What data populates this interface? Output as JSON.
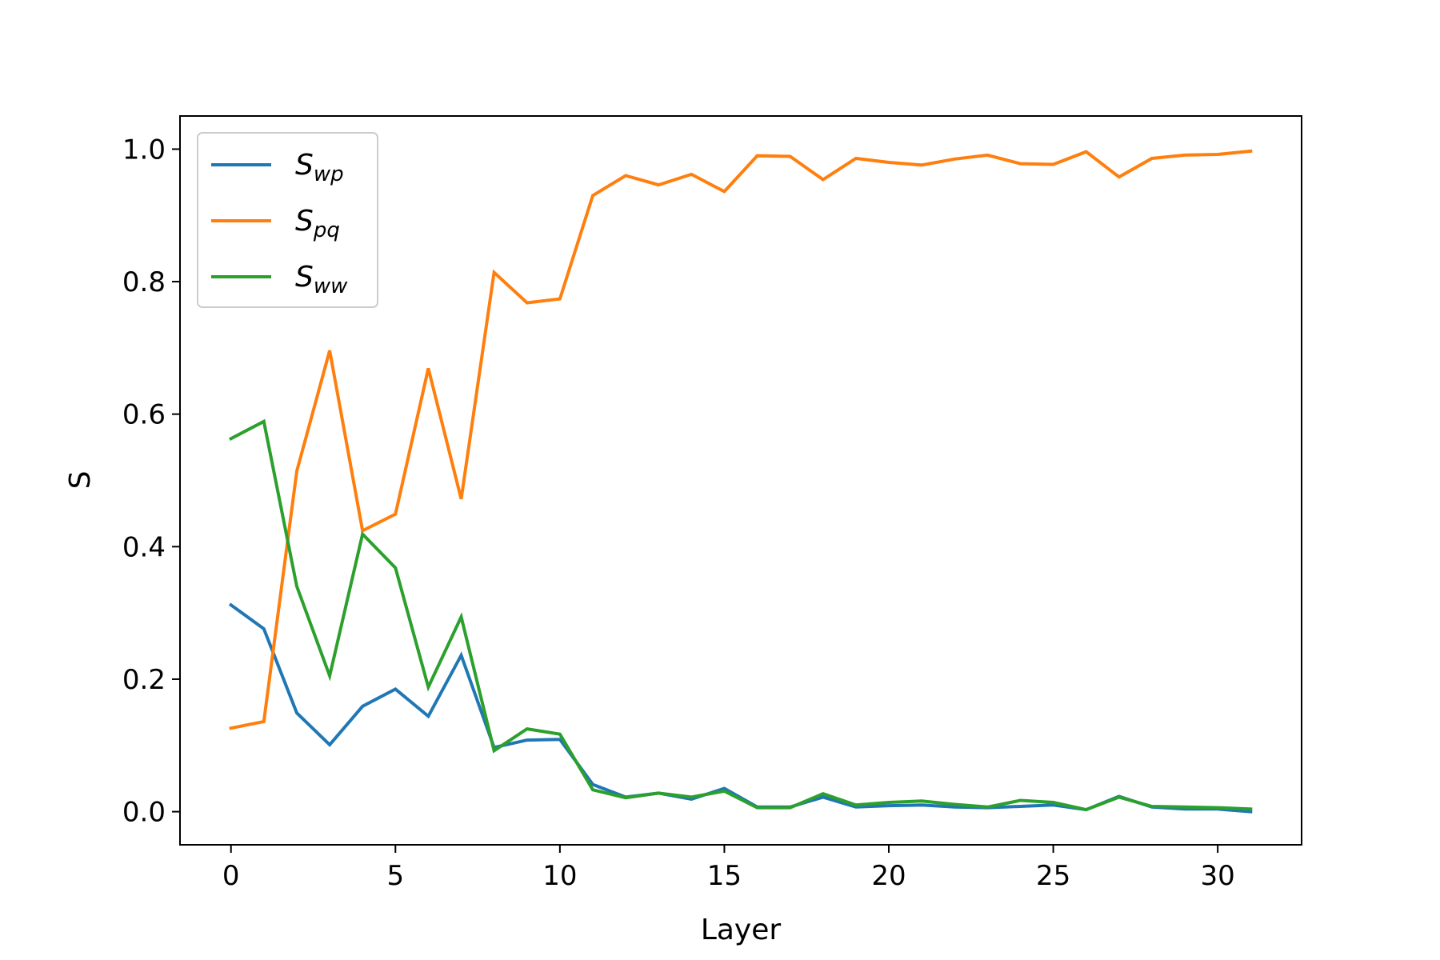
{
  "chart_data": {
    "type": "line",
    "xlabel": "Layer",
    "ylabel": "S",
    "xlim": [
      -1.55,
      32.55
    ],
    "ylim": [
      -0.05,
      1.05
    ],
    "xticks": [
      0,
      5,
      10,
      15,
      20,
      25,
      30
    ],
    "yticks": [
      0.0,
      0.2,
      0.4,
      0.6,
      0.8,
      1.0
    ],
    "xtick_labels": [
      "0",
      "5",
      "10",
      "15",
      "20",
      "25",
      "30"
    ],
    "ytick_labels": [
      "0.0",
      "0.2",
      "0.4",
      "0.6",
      "0.8",
      "1.0"
    ],
    "legend_position": "upper-left",
    "grid": false,
    "x": [
      0,
      1,
      2,
      3,
      4,
      5,
      6,
      7,
      8,
      9,
      10,
      11,
      12,
      13,
      14,
      15,
      16,
      17,
      18,
      19,
      20,
      21,
      22,
      23,
      24,
      25,
      26,
      27,
      28,
      29,
      30,
      31
    ],
    "series": [
      {
        "name": "S_wp",
        "label_main": "S",
        "label_sub": "wp",
        "color": "#1f77b4",
        "values": [
          0.312,
          0.276,
          0.149,
          0.101,
          0.159,
          0.185,
          0.144,
          0.236,
          0.097,
          0.108,
          0.109,
          0.041,
          0.022,
          0.028,
          0.019,
          0.035,
          0.007,
          0.007,
          0.022,
          0.007,
          0.009,
          0.01,
          0.007,
          0.006,
          0.008,
          0.01,
          0.003,
          0.023,
          0.007,
          0.004,
          0.004,
          0.0
        ]
      },
      {
        "name": "S_pq",
        "label_main": "S",
        "label_sub": "pq",
        "color": "#ff7f0e",
        "values": [
          0.126,
          0.136,
          0.514,
          0.696,
          0.424,
          0.449,
          0.669,
          0.472,
          0.814,
          0.768,
          0.774,
          0.93,
          0.96,
          0.946,
          0.962,
          0.936,
          0.99,
          0.989,
          0.954,
          0.986,
          0.98,
          0.976,
          0.985,
          0.991,
          0.978,
          0.977,
          0.996,
          0.958,
          0.986,
          0.991,
          0.992,
          0.997
        ]
      },
      {
        "name": "S_ww",
        "label_main": "S",
        "label_sub": "ww",
        "color": "#2ca02c",
        "values": [
          0.563,
          0.589,
          0.34,
          0.205,
          0.419,
          0.368,
          0.188,
          0.294,
          0.092,
          0.125,
          0.117,
          0.033,
          0.021,
          0.028,
          0.022,
          0.031,
          0.006,
          0.006,
          0.027,
          0.01,
          0.014,
          0.016,
          0.011,
          0.007,
          0.017,
          0.014,
          0.003,
          0.022,
          0.008,
          0.007,
          0.006,
          0.004
        ]
      }
    ]
  }
}
